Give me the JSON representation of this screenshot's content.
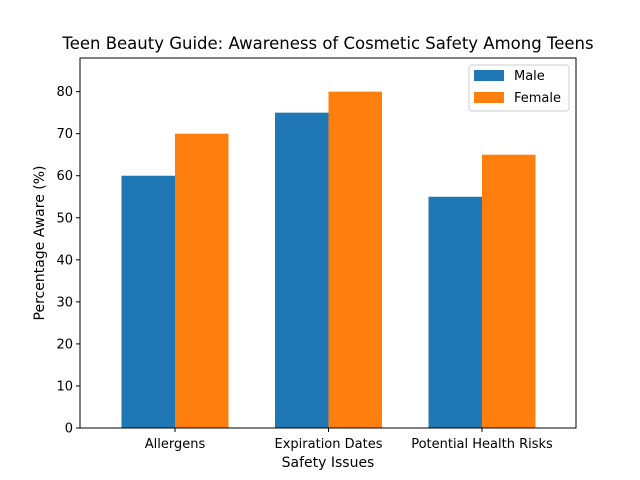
{
  "chart_data": {
    "type": "bar",
    "title": "Teen Beauty Guide: Awareness of Cosmetic Safety Among Teens",
    "xlabel": "Safety Issues",
    "ylabel": "Percentage Aware (%)",
    "categories": [
      "Allergens",
      "Expiration Dates",
      "Potential Health Risks"
    ],
    "series": [
      {
        "name": "Male",
        "values": [
          60,
          75,
          55
        ],
        "color": "#1f77b4"
      },
      {
        "name": "Female",
        "values": [
          70,
          80,
          65
        ],
        "color": "#ff7f0e"
      }
    ],
    "ylim": [
      0,
      88
    ],
    "yticks": [
      0,
      10,
      20,
      30,
      40,
      50,
      60,
      70,
      80
    ],
    "grid": false,
    "legend": "top-right"
  }
}
